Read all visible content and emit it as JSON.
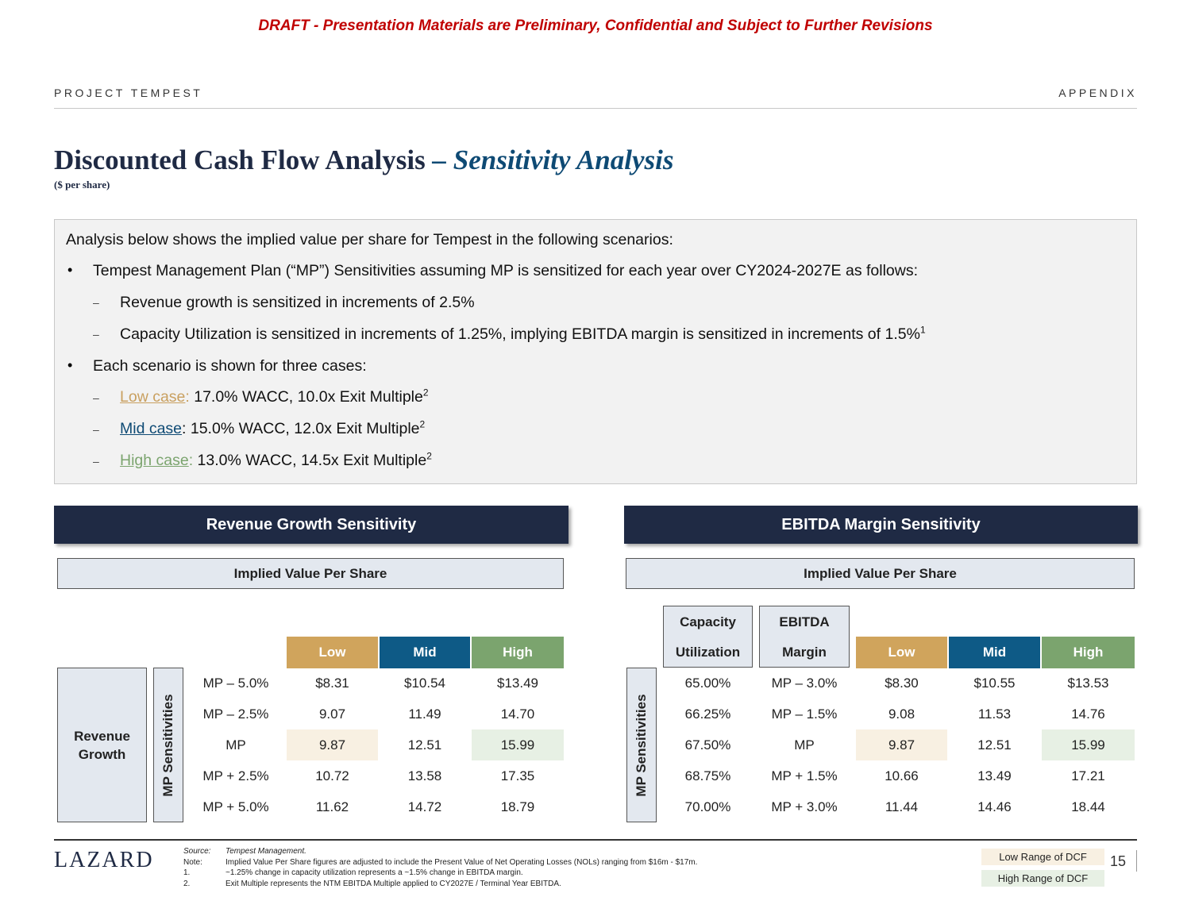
{
  "draft_banner": "DRAFT - Presentation Materials are Preliminary, Confidential and Subject to Further Revisions",
  "header": {
    "project": "PROJECT TEMPEST",
    "section": "APPENDIX"
  },
  "title": {
    "main": "Discounted Cash Flow Analysis ",
    "accent": "– Sensitivity Analysis",
    "subtitle": "($ per share)"
  },
  "summary": {
    "intro": "Analysis below shows the implied value per share for Tempest in the following scenarios:",
    "bullet1": "Tempest Management Plan (“MP”) Sensitivities assuming MP is sensitized for each year over CY2024-2027E as follows:",
    "sub1": "Revenue growth is sensitized in increments of 2.5%",
    "sub2": "Capacity Utilization is sensitized in increments of 1.25%, implying EBITDA margin is sensitized in increments of 1.5%",
    "sub2_sup": "1",
    "bullet2": "Each scenario is shown for three cases:",
    "low_label": "Low case",
    "low_text": " 17.0% WACC, 10.0x Exit Multiple",
    "mid_label": "Mid case",
    "mid_text": ": 15.0% WACC, 12.0x Exit Multiple",
    "high_label": "High case",
    "high_text": " 13.0% WACC, 14.5x Exit Multiple",
    "case_sup": "2",
    "colon": ":"
  },
  "revenue_panel": {
    "title": "Revenue Growth Sensitivity",
    "subheader": "Implied Value Per Share",
    "row_group_label_1": "Revenue",
    "row_group_label_2": "Growth",
    "side_label": "MP Sensitivities",
    "columns": [
      "Low",
      "Mid",
      "High"
    ],
    "rows": [
      {
        "label": "MP – 5.0%",
        "low": "$8.31",
        "mid": "$10.54",
        "high": "$13.49"
      },
      {
        "label": "MP – 2.5%",
        "low": "9.07",
        "mid": "11.49",
        "high": "14.70"
      },
      {
        "label": "MP",
        "low": "9.87",
        "mid": "12.51",
        "high": "15.99"
      },
      {
        "label": "MP + 2.5%",
        "low": "10.72",
        "mid": "13.58",
        "high": "17.35"
      },
      {
        "label": "MP + 5.0%",
        "low": "11.62",
        "mid": "14.72",
        "high": "18.79"
      }
    ]
  },
  "ebitda_panel": {
    "title": "EBITDA Margin Sensitivity",
    "subheader": "Implied Value Per Share",
    "side_label": "MP Sensitivities",
    "cap_head_1": "Capacity",
    "cap_head_2": "Utilization",
    "ebitda_head_1": "EBITDA",
    "ebitda_head_2": "Margin",
    "columns": [
      "Low",
      "Mid",
      "High"
    ],
    "rows": [
      {
        "cap": "65.00%",
        "margin": "MP – 3.0%",
        "low": "$8.30",
        "mid": "$10.55",
        "high": "$13.53"
      },
      {
        "cap": "66.25%",
        "margin": "MP – 1.5%",
        "low": "9.08",
        "mid": "11.53",
        "high": "14.76"
      },
      {
        "cap": "67.50%",
        "margin": "MP",
        "low": "9.87",
        "mid": "12.51",
        "high": "15.99"
      },
      {
        "cap": "68.75%",
        "margin": "MP + 1.5%",
        "low": "10.66",
        "mid": "13.49",
        "high": "17.21"
      },
      {
        "cap": "70.00%",
        "margin": "MP + 3.0%",
        "low": "11.44",
        "mid": "14.46",
        "high": "18.44"
      }
    ]
  },
  "footer": {
    "logo": "LAZARD",
    "notes": [
      {
        "key": "Source:",
        "text": "Tempest Management."
      },
      {
        "key": "Note:",
        "text": "Implied Value Per Share figures are adjusted to include the Present Value of Net Operating Losses (NOLs) ranging from $16m - $17m."
      },
      {
        "key": "1.",
        "text": "~1.25% change in capacity utilization represents a ~1.5% change in EBITDA margin."
      },
      {
        "key": "2.",
        "text": "Exit Multiple represents the NTM EBITDA Multiple applied to CY2027E / Terminal Year EBITDA."
      }
    ],
    "legend_low": "Low Range of DCF",
    "legend_high": "High Range of DCF",
    "page_number": "15"
  },
  "colors": {
    "navy": "#1f2a44",
    "low": "#d0a45c",
    "mid": "#0e5a86",
    "high": "#7ba46e",
    "draft": "#c00000"
  }
}
